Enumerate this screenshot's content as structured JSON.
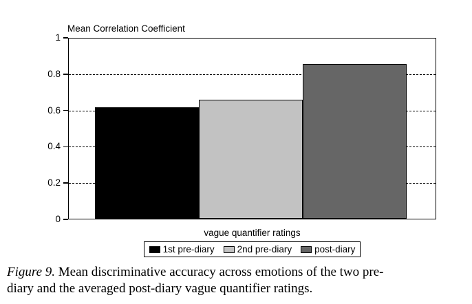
{
  "chart_data": {
    "type": "bar",
    "title": "Mean Correlation Coefficient",
    "categories": [
      "1st pre-diary",
      "2nd pre-diary",
      "post-diary"
    ],
    "values": [
      0.62,
      0.66,
      0.86
    ],
    "bar_colors": [
      "#000000",
      "#c2c2c2",
      "#666666"
    ],
    "xlabel": "vague quantifier ratings",
    "ylabel": "",
    "ylim": [
      0,
      1
    ],
    "ytick_labels": [
      "1",
      "0.8",
      "0.6",
      "0.4",
      "0.2",
      "0"
    ],
    "ytick_values": [
      1,
      0.8,
      0.6,
      0.4,
      0.2,
      0
    ],
    "gridline_values": [
      0.8,
      0.6,
      0.4,
      0.2
    ],
    "grid_style": "dashed",
    "legend_position": "bottom",
    "legend": [
      {
        "label": "1st pre-diary",
        "color": "#000000"
      },
      {
        "label": "2nd pre-diary",
        "color": "#c2c2c2"
      },
      {
        "label": "post-diary",
        "color": "#666666"
      }
    ]
  },
  "caption": {
    "figure_label": "Figure 9.",
    "line1": "Mean discriminative accuracy across emotions of the two pre-",
    "line2": "diary and the averaged post-diary vague quantifier ratings."
  }
}
